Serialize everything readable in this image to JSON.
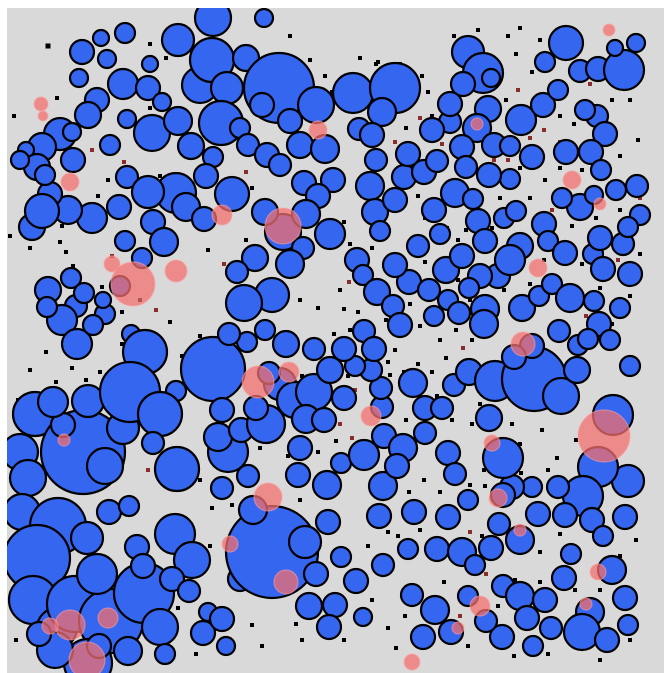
{
  "scene": {
    "colors": {
      "arena_background": "#d9d9d9",
      "page_background": "#ffffff",
      "blue_cell": "#3566f0",
      "blue_outline": "#000000",
      "pink_cell": "#f46e6e",
      "food_dot": "#000000",
      "red_food_dot": "#8b2c2c"
    }
  }
}
